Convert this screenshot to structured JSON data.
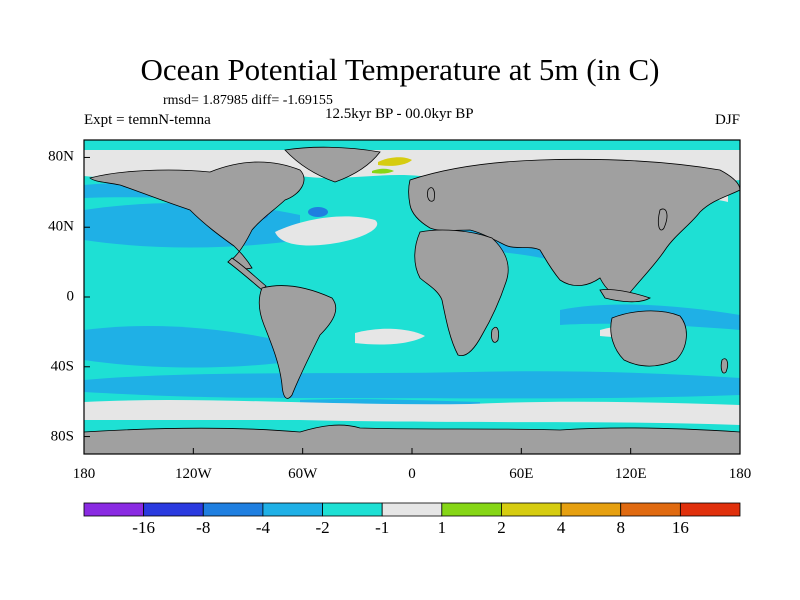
{
  "title": "Ocean Potential Temperature at 5m (in C)",
  "stats": "rmsd= 1.87985 diff= -1.69155",
  "expt": "Expt = temnN-temna",
  "period": "12.5kyr BP - 00.0kyr BP",
  "season": "DJF",
  "map": {
    "lon_range": [
      -180,
      180
    ],
    "lat_range": [
      -90,
      90
    ],
    "land_color": "#a0a0a0",
    "frame_color": "#000000"
  },
  "axes": {
    "y_ticks": [
      {
        "label": "80N",
        "lat": 80
      },
      {
        "label": "40N",
        "lat": 40
      },
      {
        "label": "0",
        "lat": 0
      },
      {
        "label": "40S",
        "lat": -40
      },
      {
        "label": "80S",
        "lat": -80
      }
    ],
    "x_ticks": [
      {
        "label": "180",
        "lon": -180
      },
      {
        "label": "120W",
        "lon": -120
      },
      {
        "label": "60W",
        "lon": -60
      },
      {
        "label": "0",
        "lon": 0
      },
      {
        "label": "60E",
        "lon": 60
      },
      {
        "label": "120E",
        "lon": 120
      },
      {
        "label": "180",
        "lon": 180
      }
    ]
  },
  "colorbar": {
    "colors": [
      "#8a2be2",
      "#2a3adf",
      "#1f7fe0",
      "#1fb0e6",
      "#1ee0d4",
      "#e6e6e6",
      "#86d616",
      "#d6cc10",
      "#e6a010",
      "#e06a10",
      "#e0300c"
    ],
    "labels": [
      "-16",
      "-8",
      "-4",
      "-2",
      "-1",
      "1",
      "2",
      "4",
      "8",
      "16"
    ]
  }
}
